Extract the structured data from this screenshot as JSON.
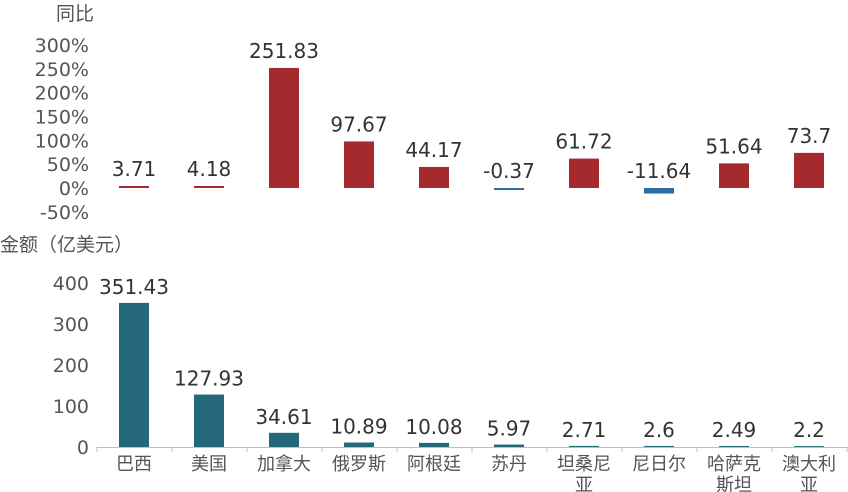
{
  "chart_data": [
    {
      "type": "bar",
      "ylabel": "同比",
      "categories": [
        "巴西",
        "美国",
        "加拿大",
        "俄罗斯",
        "阿根廷",
        "苏丹",
        "坦桑尼亚",
        "尼日尔",
        "哈萨克斯坦",
        "澳大利亚"
      ],
      "values": [
        3.71,
        4.18,
        251.83,
        97.67,
        44.17,
        -0.37,
        61.72,
        -11.64,
        51.64,
        73.7
      ],
      "data_labels": [
        "3.71",
        "4.18",
        "251.83",
        "97.67",
        "44.17",
        "-0.37",
        "61.72",
        "-11.64",
        "51.64",
        "73.7"
      ],
      "yticks": [
        "300%",
        "250%",
        "200%",
        "150%",
        "100%",
        "50%",
        "0%",
        "-50%"
      ],
      "ylim": [
        -50,
        300
      ],
      "colors": {
        "positive": "#a52a2e",
        "negative": "#2e6da4"
      }
    },
    {
      "type": "bar",
      "ylabel": "金额（亿美元）",
      "categories": [
        "巴西",
        "美国",
        "加拿大",
        "俄罗斯",
        "阿根廷",
        "苏丹",
        "坦桑尼亚",
        "尼日尔",
        "哈萨克斯坦",
        "澳大利亚"
      ],
      "category_lines": [
        [
          "巴西"
        ],
        [
          "美国"
        ],
        [
          "加拿大"
        ],
        [
          "俄罗斯"
        ],
        [
          "阿根廷"
        ],
        [
          "苏丹"
        ],
        [
          "坦桑尼",
          "亚"
        ],
        [
          "尼日尔"
        ],
        [
          "哈萨克",
          "斯坦"
        ],
        [
          "澳大利",
          "亚"
        ]
      ],
      "values": [
        351.43,
        127.93,
        34.61,
        10.89,
        10.08,
        5.97,
        2.71,
        2.6,
        2.49,
        2.2
      ],
      "data_labels": [
        "351.43",
        "127.93",
        "34.61",
        "10.89",
        "10.08",
        "5.97",
        "2.71",
        "2.6",
        "2.49",
        "2.2"
      ],
      "yticks": [
        "400",
        "300",
        "200",
        "100",
        "0"
      ],
      "ylim": [
        0,
        400
      ],
      "colors": {
        "bar": "#246879"
      }
    }
  ]
}
